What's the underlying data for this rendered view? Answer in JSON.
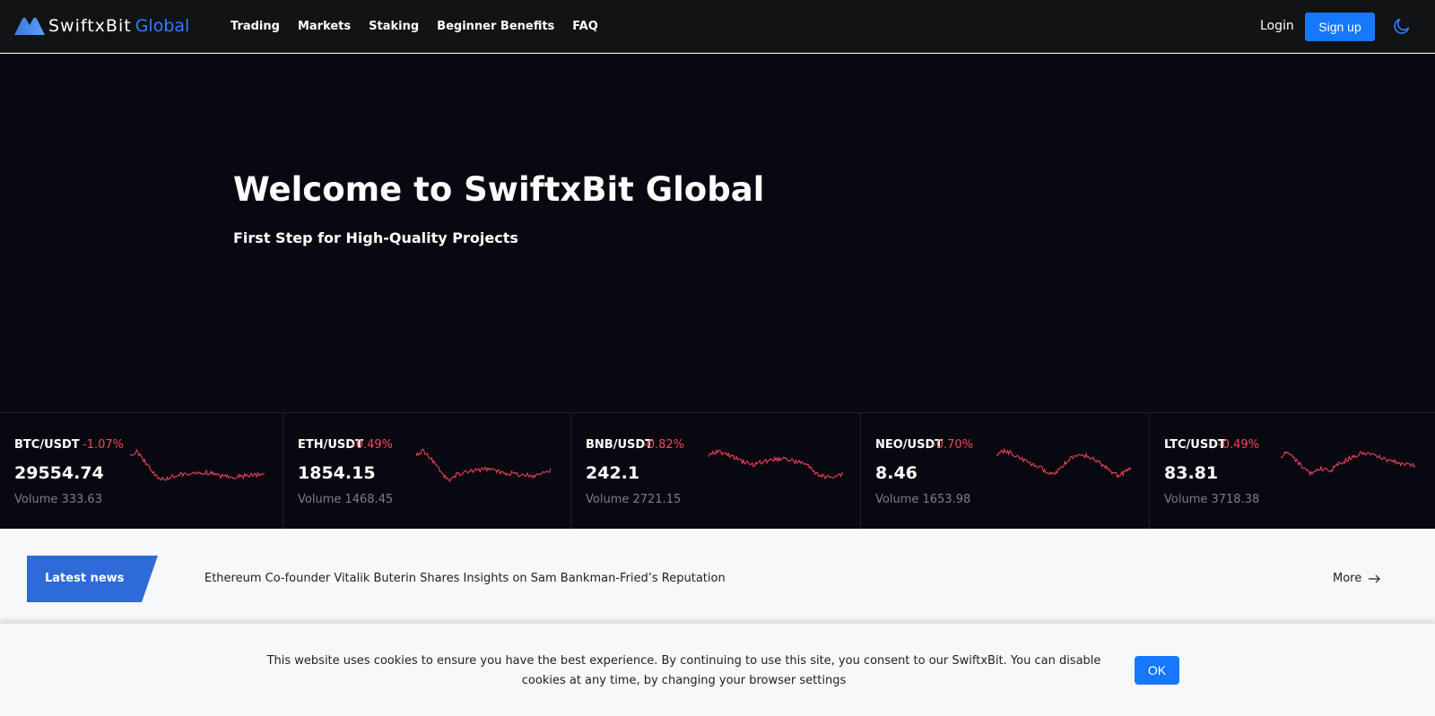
{
  "brand": {
    "name": "SwiftxBit",
    "suffix": "Global",
    "accent_color": "#2f7bff"
  },
  "nav": {
    "items": [
      {
        "label": "Trading"
      },
      {
        "label": "Markets"
      },
      {
        "label": "Staking"
      },
      {
        "label": "Beginner Benefits"
      },
      {
        "label": "FAQ"
      }
    ],
    "login_label": "Login",
    "signup_label": "Sign up",
    "theme_icon": "moon-icon"
  },
  "hero": {
    "title": "Welcome to SwiftxBit Global",
    "subtitle": "First Step for High-Quality Projects"
  },
  "tickers": [
    {
      "pair": "BTC/USDT",
      "change": "-1.07%",
      "price": "29554.74",
      "volume": "Volume 333.63"
    },
    {
      "pair": "ETH/USDT",
      "change": "-0.49%",
      "price": "1854.15",
      "volume": "Volume 1468.45"
    },
    {
      "pair": "BNB/USDT",
      "change": "-0.82%",
      "price": "242.1",
      "volume": "Volume 2721.15"
    },
    {
      "pair": "NEO/USDT",
      "change": "-0.70%",
      "price": "8.46",
      "volume": "Volume 1653.98"
    },
    {
      "pair": "LTC/USDT",
      "change": "-0.49%",
      "price": "83.81",
      "volume": "Volume 3718.38"
    }
  ],
  "sparkline_color": "#f6465d",
  "news": {
    "tag": "Latest news",
    "headline": "Ethereum Co-founder Vitalik Buterin Shares Insights on Sam Bankman-Fried’s Reputation",
    "more_label": "More"
  },
  "cookie": {
    "text": "This website uses cookies to ensure you have the best experience. By continuing to use this site, you consent to our SwiftxBit. You can disable cookies at any time, by changing your browser settings",
    "ok_label": "OK"
  }
}
